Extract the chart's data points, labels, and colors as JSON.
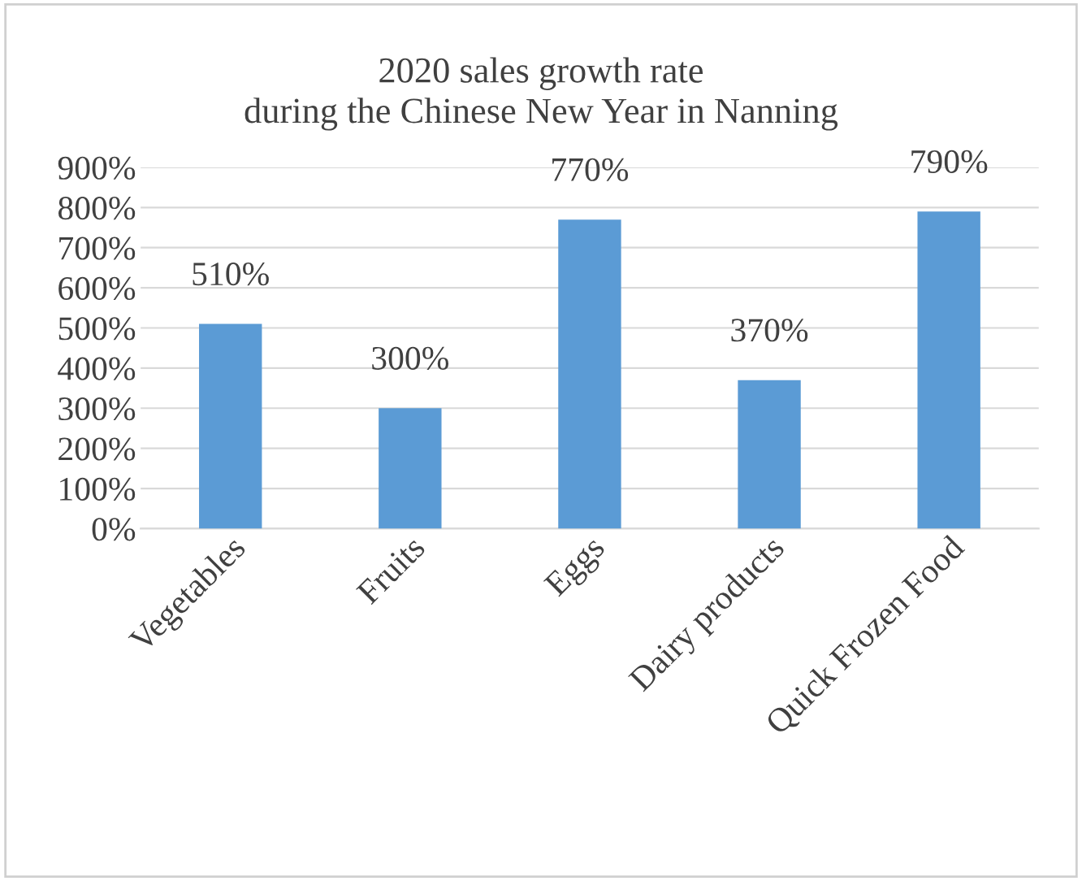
{
  "chart_data": {
    "type": "bar",
    "title": "2020 sales growth rate\nduring the Chinese New Year in Nanning",
    "categories": [
      "Vegetables",
      "Fruits",
      "Eggs",
      "Dairy products",
      "Quick Frozen Food"
    ],
    "values": [
      510,
      300,
      770,
      370,
      790
    ],
    "value_labels": [
      "510%",
      "300%",
      "770%",
      "370%",
      "790%"
    ],
    "color": "#5b9bd5",
    "ylim": [
      0,
      900
    ],
    "yticks": [
      {
        "value": 0,
        "label": "0%"
      },
      {
        "value": 100,
        "label": "100%"
      },
      {
        "value": 200,
        "label": "200%"
      },
      {
        "value": 300,
        "label": "300%"
      },
      {
        "value": 400,
        "label": "400%"
      },
      {
        "value": 500,
        "label": "500%"
      },
      {
        "value": 600,
        "label": "600%"
      },
      {
        "value": 700,
        "label": "700%"
      },
      {
        "value": 800,
        "label": "800%"
      },
      {
        "value": 900,
        "label": "900%"
      }
    ],
    "grid": "y",
    "legend": false
  }
}
